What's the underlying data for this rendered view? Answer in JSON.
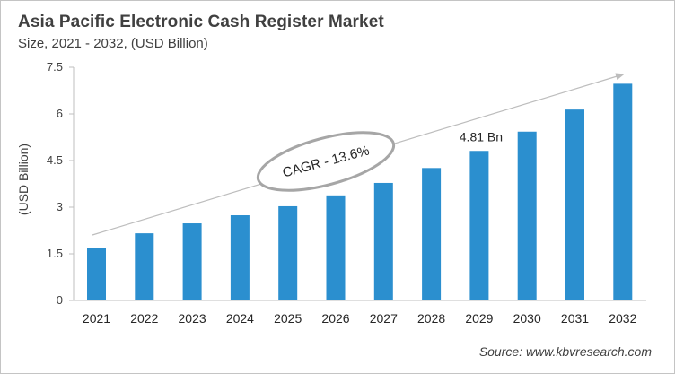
{
  "header": {
    "title": "Asia Pacific Electronic Cash Register Market",
    "subtitle": "Size, 2021 - 2032, (USD Billion)"
  },
  "source": "Source: www.kbvresearch.com",
  "annotations": {
    "cagr": "CAGR - 13.6%",
    "highlight_label": "4.81 Bn",
    "highlight_year": "2029"
  },
  "colors": {
    "bar": "#2b8fcf",
    "axis": "#bfbfbf",
    "trend_arrow": "#bdbdbd",
    "ellipse": "#a6a6a6",
    "text": "#404040"
  },
  "chart_data": {
    "type": "bar",
    "title": "Asia Pacific Electronic Cash Register Market",
    "subtitle": "Size, 2021 - 2032, (USD Billion)",
    "xlabel": "",
    "ylabel": "(USD Billion)",
    "categories": [
      "2021",
      "2022",
      "2023",
      "2024",
      "2025",
      "2026",
      "2027",
      "2028",
      "2029",
      "2030",
      "2031",
      "2032"
    ],
    "values": [
      1.7,
      2.16,
      2.48,
      2.74,
      3.03,
      3.38,
      3.78,
      4.26,
      4.81,
      5.43,
      6.14,
      6.97
    ],
    "ylim": [
      0,
      7.5
    ],
    "yticks": [
      "0",
      "1.5",
      "3",
      "4.5",
      "6",
      "7.5"
    ],
    "grid": false,
    "legend": null,
    "data_labels": [
      {
        "category": "2029",
        "text": "4.81 Bn"
      }
    ],
    "annotations": [
      "CAGR - 13.6%"
    ]
  }
}
